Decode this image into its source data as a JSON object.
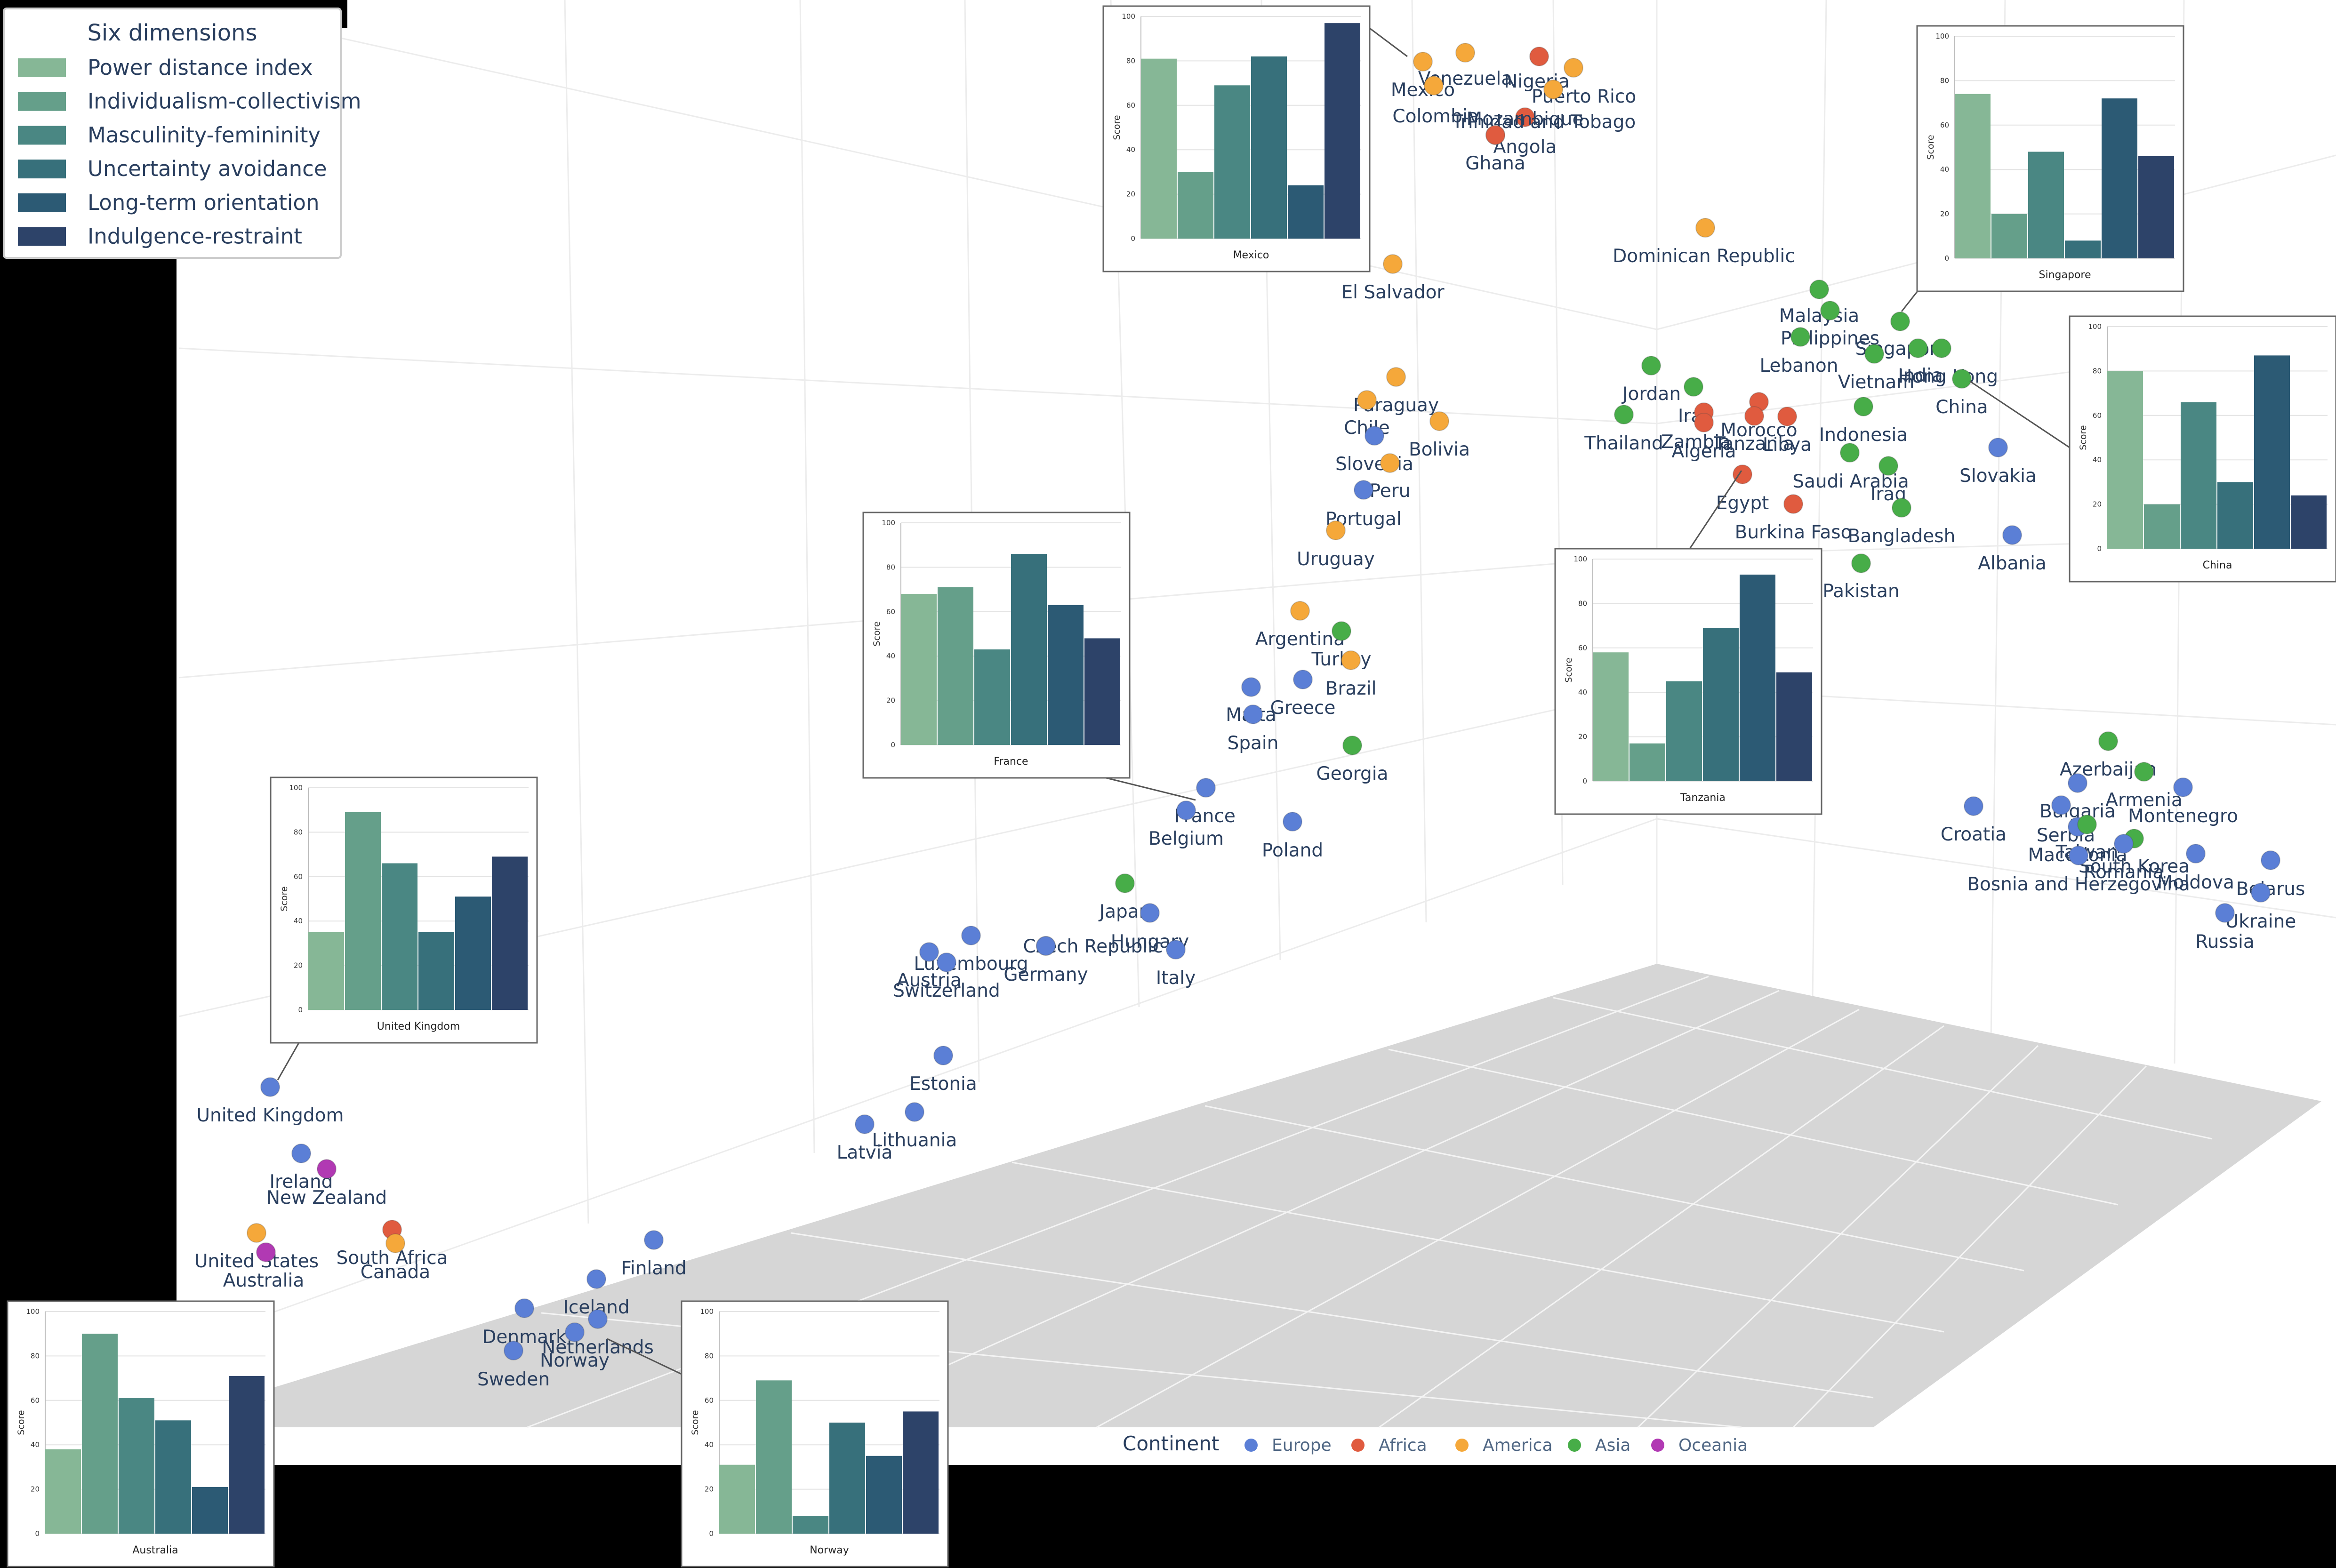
{
  "chart_data": {
    "type": "scatter",
    "points": [
      {
        "country": "Mexico",
        "continent": "America"
      },
      {
        "country": "Venezuela",
        "continent": "America"
      },
      {
        "country": "Nigeria",
        "continent": "Africa"
      },
      {
        "country": "Puerto Rico",
        "continent": "America"
      },
      {
        "country": "Colombia",
        "continent": "America"
      },
      {
        "country": "Mozambique",
        "continent": "Africa"
      },
      {
        "country": "Trinidad and Tobago",
        "continent": "America"
      },
      {
        "country": "Angola",
        "continent": "Africa"
      },
      {
        "country": "Ghana",
        "continent": "Africa"
      },
      {
        "country": "El Salvador",
        "continent": "America"
      },
      {
        "country": "Dominican Republic",
        "continent": "America"
      },
      {
        "country": "Malaysia",
        "continent": "Asia"
      },
      {
        "country": "Philippines",
        "continent": "Asia"
      },
      {
        "country": "Singapore",
        "continent": "Asia"
      },
      {
        "country": "Lebanon",
        "continent": "Asia"
      },
      {
        "country": "India",
        "continent": "Asia"
      },
      {
        "country": "Hong Kong",
        "continent": "Asia"
      },
      {
        "country": "Vietnam",
        "continent": "Asia"
      },
      {
        "country": "China",
        "continent": "Asia"
      },
      {
        "country": "Jordan",
        "continent": "Asia"
      },
      {
        "country": "Iran",
        "continent": "Asia"
      },
      {
        "country": "Thailand",
        "continent": "Asia"
      },
      {
        "country": "Zambia",
        "continent": "Africa"
      },
      {
        "country": "Morocco",
        "continent": "Africa"
      },
      {
        "country": "Algeria",
        "continent": "Africa"
      },
      {
        "country": "Tanzania",
        "continent": "Africa"
      },
      {
        "country": "Libya",
        "continent": "Africa"
      },
      {
        "country": "Indonesia",
        "continent": "Asia"
      },
      {
        "country": "Saudi Arabia",
        "continent": "Asia"
      },
      {
        "country": "Iraq",
        "continent": "Asia"
      },
      {
        "country": "Egypt",
        "continent": "Africa"
      },
      {
        "country": "Burkina Faso",
        "continent": "Africa"
      },
      {
        "country": "Bangladesh",
        "continent": "Asia"
      },
      {
        "country": "Pakistan",
        "continent": "Asia"
      },
      {
        "country": "Slovakia",
        "continent": "Europe"
      },
      {
        "country": "Albania",
        "continent": "Europe"
      },
      {
        "country": "Paraguay",
        "continent": "America"
      },
      {
        "country": "Chile",
        "continent": "America"
      },
      {
        "country": "Bolivia",
        "continent": "America"
      },
      {
        "country": "Slovenia",
        "continent": "Europe"
      },
      {
        "country": "Peru",
        "continent": "America"
      },
      {
        "country": "Portugal",
        "continent": "Europe"
      },
      {
        "country": "Uruguay",
        "continent": "America"
      },
      {
        "country": "Argentina",
        "continent": "America"
      },
      {
        "country": "Turkey",
        "continent": "Asia"
      },
      {
        "country": "Brazil",
        "continent": "America"
      },
      {
        "country": "Greece",
        "continent": "Europe"
      },
      {
        "country": "Malta",
        "continent": "Europe"
      },
      {
        "country": "Spain",
        "continent": "Europe"
      },
      {
        "country": "Georgia",
        "continent": "Asia"
      },
      {
        "country": "France",
        "continent": "Europe"
      },
      {
        "country": "Belgium",
        "continent": "Europe"
      },
      {
        "country": "Poland",
        "continent": "Europe"
      },
      {
        "country": "Japan",
        "continent": "Asia"
      },
      {
        "country": "Hungary",
        "continent": "Europe"
      },
      {
        "country": "Italy",
        "continent": "Europe"
      },
      {
        "country": "Czech Republic",
        "continent": "Europe"
      },
      {
        "country": "Germany",
        "continent": "Europe"
      },
      {
        "country": "Luxembourg",
        "continent": "Europe"
      },
      {
        "country": "Austria",
        "continent": "Europe"
      },
      {
        "country": "Switzerland",
        "continent": "Europe"
      },
      {
        "country": "Estonia",
        "continent": "Europe"
      },
      {
        "country": "Latvia",
        "continent": "Europe"
      },
      {
        "country": "Lithuania",
        "continent": "Europe"
      },
      {
        "country": "United Kingdom",
        "continent": "Europe"
      },
      {
        "country": "Ireland",
        "continent": "Europe"
      },
      {
        "country": "New Zealand",
        "continent": "Oceania"
      },
      {
        "country": "United States",
        "continent": "America"
      },
      {
        "country": "Australia",
        "continent": "Oceania"
      },
      {
        "country": "South Africa",
        "continent": "Africa"
      },
      {
        "country": "Canada",
        "continent": "America"
      },
      {
        "country": "Finland",
        "continent": "Europe"
      },
      {
        "country": "Iceland",
        "continent": "Europe"
      },
      {
        "country": "Denmark",
        "continent": "Europe"
      },
      {
        "country": "Netherlands",
        "continent": "Europe"
      },
      {
        "country": "Norway",
        "continent": "Europe"
      },
      {
        "country": "Sweden",
        "continent": "Europe"
      },
      {
        "country": "Azerbaijan",
        "continent": "Asia"
      },
      {
        "country": "Armenia",
        "continent": "Asia"
      },
      {
        "country": "Bulgaria",
        "continent": "Europe"
      },
      {
        "country": "Montenegro",
        "continent": "Europe"
      },
      {
        "country": "Croatia",
        "continent": "Europe"
      },
      {
        "country": "Serbia",
        "continent": "Europe"
      },
      {
        "country": "Macedonia",
        "continent": "Europe"
      },
      {
        "country": "Taiwan",
        "continent": "Asia"
      },
      {
        "country": "South Korea",
        "continent": "Asia"
      },
      {
        "country": "Romania",
        "continent": "Europe"
      },
      {
        "country": "Moldova",
        "continent": "Europe"
      },
      {
        "country": "Bosnia and Herzegovina",
        "continent": "Europe"
      },
      {
        "country": "Belarus",
        "continent": "Europe"
      },
      {
        "country": "Ukraine",
        "continent": "Europe"
      },
      {
        "country": "Russia",
        "continent": "Europe"
      }
    ],
    "continent_legend": {
      "title": "Continent",
      "entries": [
        {
          "name": "Europe",
          "color": "#5b7fd6"
        },
        {
          "name": "Africa",
          "color": "#e05b3f"
        },
        {
          "name": "America",
          "color": "#f5a83a"
        },
        {
          "name": "Asia",
          "color": "#47ad48"
        },
        {
          "name": "Oceania",
          "color": "#b139b3"
        }
      ]
    },
    "dimensions_legend": {
      "title": "Six dimensions",
      "entries": [
        {
          "name": "Power distance index",
          "color": "#86b796"
        },
        {
          "name": "Individualism-collectivism",
          "color": "#659f8a"
        },
        {
          "name": "Masculinity-femininity",
          "color": "#4a8783"
        },
        {
          "name": "Uncertainty avoidance",
          "color": "#37707b"
        },
        {
          "name": "Long-term orientation",
          "color": "#2c5a74"
        },
        {
          "name": "Indulgence-restraint",
          "color": "#2d4369"
        }
      ]
    },
    "insets": [
      {
        "country": "Mexico",
        "ylabel": "Score",
        "ylim": [
          0,
          100
        ],
        "yticks": [
          0,
          20,
          40,
          60,
          80,
          100
        ],
        "values": [
          81,
          30,
          69,
          82,
          24,
          97
        ]
      },
      {
        "country": "Singapore",
        "ylabel": "Score",
        "ylim": [
          0,
          100
        ],
        "yticks": [
          0,
          20,
          40,
          60,
          80,
          100
        ],
        "values": [
          74,
          20,
          48,
          8,
          72,
          46
        ]
      },
      {
        "country": "China",
        "ylabel": "Score",
        "ylim": [
          0,
          100
        ],
        "yticks": [
          0,
          20,
          40,
          60,
          80,
          100
        ],
        "values": [
          80,
          20,
          66,
          30,
          87,
          24
        ]
      },
      {
        "country": "France",
        "ylabel": "Score",
        "ylim": [
          0,
          100
        ],
        "yticks": [
          0,
          20,
          40,
          60,
          80,
          100
        ],
        "values": [
          68,
          71,
          43,
          86,
          63,
          48
        ]
      },
      {
        "country": "Tanzania",
        "ylabel": "Score",
        "ylim": [
          0,
          100
        ],
        "yticks": [
          0,
          20,
          40,
          60,
          80,
          100
        ],
        "values": [
          58,
          17,
          45,
          69,
          93,
          49
        ]
      },
      {
        "country": "United Kingdom",
        "ylabel": "Score",
        "ylim": [
          0,
          100
        ],
        "yticks": [
          0,
          20,
          40,
          60,
          80,
          100
        ],
        "values": [
          35,
          89,
          66,
          35,
          51,
          69
        ]
      },
      {
        "country": "Australia",
        "ylabel": "Score",
        "ylim": [
          0,
          100
        ],
        "yticks": [
          0,
          20,
          40,
          60,
          80,
          100
        ],
        "values": [
          38,
          90,
          61,
          51,
          21,
          71
        ]
      },
      {
        "country": "Norway",
        "ylabel": "Score",
        "ylim": [
          0,
          100
        ],
        "yticks": [
          0,
          20,
          40,
          60,
          80,
          100
        ],
        "values": [
          31,
          69,
          8,
          50,
          35,
          55
        ]
      }
    ]
  }
}
